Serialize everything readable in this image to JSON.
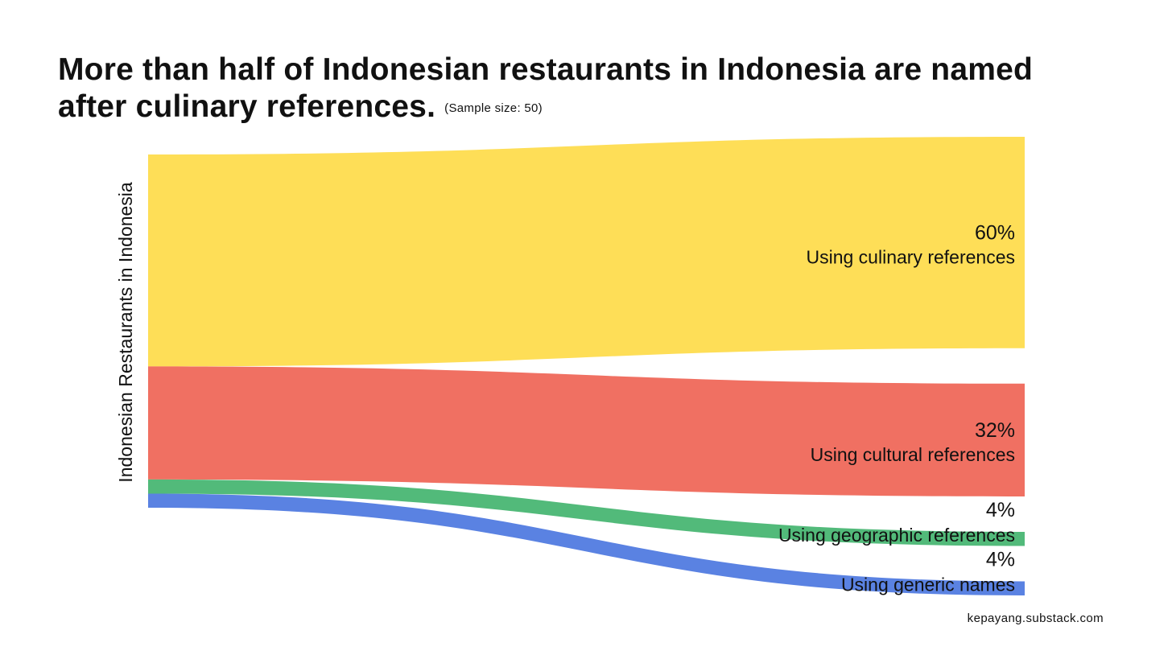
{
  "header": {
    "title": "More than half of Indonesian restaurants in Indonesia are named after culinary references.",
    "subtitle": "(Sample size: 50)"
  },
  "footer": {
    "source": "kepayang.substack.com"
  },
  "chart_data": {
    "type": "sankey",
    "source_node": "Indonesian Restaurants in Indonesia",
    "sample_size": 50,
    "flows": [
      {
        "value": 60,
        "pct_label": "60%",
        "label": "Using culinary references",
        "color": "#FEDE57"
      },
      {
        "value": 32,
        "pct_label": "32%",
        "label": "Using cultural references",
        "color": "#F07062"
      },
      {
        "value": 4,
        "pct_label": "4%",
        "label": "Using geographic references",
        "color": "#52BA7A"
      },
      {
        "value": 4,
        "pct_label": "4%",
        "label": "Using generic names",
        "color": "#5A82E2"
      }
    ]
  }
}
